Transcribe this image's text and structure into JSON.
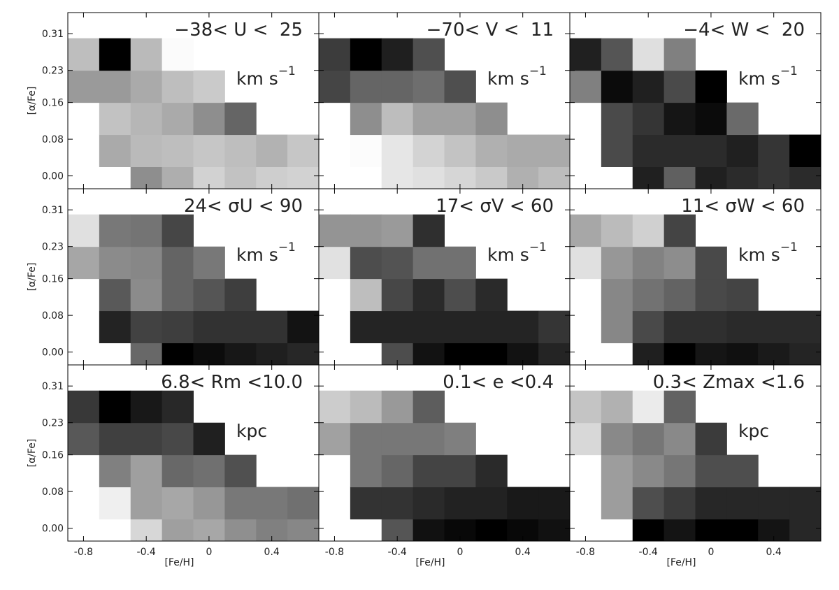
{
  "chart_data": [
    {
      "type": "heatmap",
      "title": "−38< U <  25",
      "annotation": {
        "text": "km s",
        "superscript": "−1"
      },
      "zlim": [
        -38,
        25
      ],
      "ylabel": "[α/Fe]",
      "x_bins": [
        -0.9,
        -0.7,
        -0.5,
        -0.3,
        -0.1,
        0.1,
        0.3,
        0.5,
        0.7
      ],
      "y_bins": [
        -0.05,
        0.02,
        0.09,
        0.16,
        0.23,
        0.3
      ],
      "xlim": [
        -0.9,
        0.7
      ],
      "ylim": [
        -0.028,
        0.356
      ],
      "xticks": [
        -0.8,
        -0.4,
        0,
        0.4
      ],
      "yticks": [
        {
          "value": 0,
          "label": "0.00"
        },
        {
          "value": 0.08,
          "label": "0.08"
        },
        {
          "value": 0.16,
          "label": "0.16"
        },
        {
          "value": 0.23,
          "label": "0.23"
        },
        {
          "value": 0.31,
          "label": "0.31"
        }
      ],
      "values": [
        [
          null,
          null,
          -3,
          5,
          14,
          10,
          13,
          14
        ],
        [
          null,
          4,
          8,
          9,
          11,
          9,
          6,
          11
        ],
        [
          null,
          10,
          7,
          4,
          -3,
          -13,
          null,
          null
        ],
        [
          0,
          0,
          4,
          9,
          12,
          null,
          null,
          null
        ],
        [
          9,
          -38,
          8,
          24,
          null,
          null,
          null,
          null
        ]
      ]
    },
    {
      "type": "heatmap",
      "title": "−70< V <  11",
      "annotation": {
        "text": "km s",
        "superscript": "−1"
      },
      "zlim": [
        -70,
        11
      ],
      "x_bins": [
        -0.9,
        -0.7,
        -0.5,
        -0.3,
        -0.1,
        0.1,
        0.3,
        0.5,
        0.7
      ],
      "y_bins": [
        -0.05,
        0.02,
        0.09,
        0.16,
        0.23,
        0.3
      ],
      "xlim": [
        -0.9,
        0.7
      ],
      "ylim": [
        -0.028,
        0.356
      ],
      "xticks": [
        -0.8,
        -0.4,
        0,
        0.4
      ],
      "yticks": [
        {
          "value": 0,
          "label": "0.00"
        },
        {
          "value": 0.08,
          "label": "0.08"
        },
        {
          "value": 0.16,
          "label": "0.16"
        },
        {
          "value": 0.23,
          "label": "0.23"
        },
        {
          "value": 0.31,
          "label": "0.31"
        }
      ],
      "values": [
        [
          null,
          null,
          3,
          1,
          -2,
          -6,
          -14,
          -10
        ],
        [
          null,
          10,
          3,
          -3,
          -8,
          -14,
          -16,
          -16
        ],
        [
          null,
          -25,
          -10,
          -19,
          -19,
          -25,
          null,
          null
        ],
        [
          -48,
          -38,
          -38,
          -35,
          -45,
          null,
          null,
          null
        ],
        [
          -51,
          -70,
          -60,
          -45,
          null,
          null,
          null,
          null
        ]
      ]
    },
    {
      "type": "heatmap",
      "title": "−4< W <  20",
      "annotation": {
        "text": "km s",
        "superscript": "−1"
      },
      "zlim": [
        -4,
        20
      ],
      "x_bins": [
        -0.9,
        -0.7,
        -0.5,
        -0.3,
        -0.1,
        0.1,
        0.3,
        0.5,
        0.7
      ],
      "y_bins": [
        -0.05,
        0.02,
        0.09,
        0.16,
        0.23,
        0.3
      ],
      "xlim": [
        -0.9,
        0.7
      ],
      "ylim": [
        -0.028,
        0.356
      ],
      "xticks": [
        -0.8,
        -0.4,
        0,
        0.4
      ],
      "yticks": [
        {
          "value": 0,
          "label": "0.00"
        },
        {
          "value": 0.08,
          "label": "0.08"
        },
        {
          "value": 0.16,
          "label": "0.16"
        },
        {
          "value": 0.23,
          "label": "0.23"
        },
        {
          "value": 0.31,
          "label": "0.31"
        }
      ],
      "values": [
        [
          null,
          null,
          -1,
          5,
          -1,
          0,
          1,
          0
        ],
        [
          null,
          3,
          0,
          0,
          0,
          -1,
          1,
          -4
        ],
        [
          null,
          3,
          1,
          -2,
          -3,
          6,
          null,
          null
        ],
        [
          8,
          -3,
          -1,
          3,
          -4,
          null,
          null,
          null
        ],
        [
          -1,
          4,
          17,
          8,
          null,
          null,
          null,
          null
        ]
      ]
    },
    {
      "type": "heatmap",
      "title": "24< σU < 90",
      "annotation": {
        "text": "km s",
        "superscript": "−1"
      },
      "zlim": [
        24,
        90
      ],
      "ylabel": "[α/Fe]",
      "x_bins": [
        -0.9,
        -0.7,
        -0.5,
        -0.3,
        -0.1,
        0.1,
        0.3,
        0.5,
        0.7
      ],
      "y_bins": [
        -0.05,
        0.02,
        0.09,
        0.16,
        0.23,
        0.3
      ],
      "xlim": [
        -0.9,
        0.7
      ],
      "ylim": [
        -0.028,
        0.356
      ],
      "xticks": [
        -0.8,
        -0.4,
        0,
        0.4
      ],
      "yticks": [
        {
          "value": 0,
          "label": "0.00"
        },
        {
          "value": 0.08,
          "label": "0.08"
        },
        {
          "value": 0.16,
          "label": "0.16"
        },
        {
          "value": 0.23,
          "label": "0.23"
        },
        {
          "value": 0.31,
          "label": "0.31"
        }
      ],
      "values": [
        [
          null,
          null,
          51,
          24,
          27,
          30,
          32,
          34
        ],
        [
          null,
          33,
          41,
          40,
          37,
          37,
          37,
          29
        ],
        [
          null,
          47,
          60,
          50,
          46,
          40,
          null,
          null
        ],
        [
          67,
          60,
          59,
          50,
          55,
          null,
          null,
          null
        ],
        [
          82,
          55,
          54,
          42,
          null,
          null,
          null,
          null
        ]
      ]
    },
    {
      "type": "heatmap",
      "title": "17< σV < 60",
      "annotation": {
        "text": "km s",
        "superscript": "−1"
      },
      "zlim": [
        17,
        60
      ],
      "x_bins": [
        -0.9,
        -0.7,
        -0.5,
        -0.3,
        -0.1,
        0.1,
        0.3,
        0.5,
        0.7
      ],
      "y_bins": [
        -0.05,
        0.02,
        0.09,
        0.16,
        0.23,
        0.3
      ],
      "xlim": [
        -0.9,
        0.7
      ],
      "ylim": [
        -0.028,
        0.356
      ],
      "xticks": [
        -0.8,
        -0.4,
        0,
        0.4
      ],
      "yticks": [
        {
          "value": 0,
          "label": "0.00"
        },
        {
          "value": 0.08,
          "label": "0.08"
        },
        {
          "value": 0.16,
          "label": "0.16"
        },
        {
          "value": 0.23,
          "label": "0.23"
        },
        {
          "value": 0.31,
          "label": "0.31"
        }
      ],
      "values": [
        [
          null,
          null,
          30,
          20,
          17,
          17,
          20,
          23
        ],
        [
          null,
          23,
          23,
          23,
          23,
          23,
          23,
          26
        ],
        [
          null,
          49,
          29,
          24,
          30,
          24,
          null,
          null
        ],
        [
          55,
          30,
          31,
          36,
          36,
          null,
          null,
          null
        ],
        [
          42,
          42,
          43,
          25,
          null,
          null,
          null,
          null
        ]
      ]
    },
    {
      "type": "heatmap",
      "title": "11< σW < 60",
      "annotation": {
        "text": "km s",
        "superscript": "−1"
      },
      "zlim": [
        11,
        60
      ],
      "x_bins": [
        -0.9,
        -0.7,
        -0.5,
        -0.3,
        -0.1,
        0.1,
        0.3,
        0.5,
        0.7
      ],
      "y_bins": [
        -0.05,
        0.02,
        0.09,
        0.16,
        0.23,
        0.3
      ],
      "xlim": [
        -0.9,
        0.7
      ],
      "ylim": [
        -0.028,
        0.356
      ],
      "xticks": [
        -0.8,
        -0.4,
        0,
        0.4
      ],
      "yticks": [
        {
          "value": 0,
          "label": "0.00"
        },
        {
          "value": 0.08,
          "label": "0.08"
        },
        {
          "value": 0.16,
          "label": "0.16"
        },
        {
          "value": 0.23,
          "label": "0.23"
        },
        {
          "value": 0.31,
          "label": "0.31"
        }
      ],
      "values": [
        [
          null,
          null,
          17,
          11,
          15,
          14,
          16,
          18
        ],
        [
          null,
          37,
          25,
          20,
          20,
          19,
          19,
          19
        ],
        [
          null,
          37,
          33,
          30,
          25,
          24,
          null,
          null
        ],
        [
          54,
          40,
          36,
          38,
          25,
          null,
          null,
          null
        ],
        [
          43,
          47,
          51,
          24,
          null,
          null,
          null,
          null
        ]
      ]
    },
    {
      "type": "heatmap",
      "title": "6.8< Rm <10.0",
      "annotation": {
        "text": "kpc"
      },
      "zlim": [
        6.8,
        10.0
      ],
      "ylabel": "[α/Fe]",
      "xlabel": "[Fe/H]",
      "x_bins": [
        -0.9,
        -0.7,
        -0.5,
        -0.3,
        -0.1,
        0.1,
        0.3,
        0.5,
        0.7
      ],
      "y_bins": [
        -0.05,
        0.02,
        0.09,
        0.16,
        0.23,
        0.3
      ],
      "xlim": [
        -0.9,
        0.7
      ],
      "ylim": [
        -0.028,
        0.356
      ],
      "xticks": [
        -0.8,
        -0.4,
        0,
        0.4
      ],
      "yticks": [
        {
          "value": 0,
          "label": "0.00"
        },
        {
          "value": 0.08,
          "label": "0.08"
        },
        {
          "value": 0.16,
          "label": "0.16"
        },
        {
          "value": 0.23,
          "label": "0.23"
        },
        {
          "value": 0.31,
          "label": "0.31"
        }
      ],
      "values": [
        [
          null,
          null,
          9.5,
          8.8,
          8.9,
          8.6,
          8.4,
          8.5
        ],
        [
          null,
          9.8,
          8.8,
          8.9,
          8.7,
          8.3,
          8.3,
          8.2
        ],
        [
          null,
          8.4,
          8.8,
          8.1,
          8.2,
          7.8,
          null,
          null
        ],
        [
          7.9,
          7.6,
          7.6,
          7.7,
          7.2,
          null,
          null,
          null
        ],
        [
          7.5,
          6.8,
          7.1,
          7.3,
          null,
          null,
          null,
          null
        ]
      ]
    },
    {
      "type": "heatmap",
      "title": "0.1< e <0.4",
      "zlim": [
        0.1,
        0.4
      ],
      "xlabel": "[Fe/H]",
      "x_bins": [
        -0.9,
        -0.7,
        -0.5,
        -0.3,
        -0.1,
        0.1,
        0.3,
        0.5,
        0.7
      ],
      "y_bins": [
        -0.05,
        0.02,
        0.09,
        0.16,
        0.23,
        0.3
      ],
      "xlim": [
        -0.9,
        0.7
      ],
      "ylim": [
        -0.028,
        0.356
      ],
      "xticks": [
        -0.8,
        -0.4,
        0,
        0.4
      ],
      "yticks": [
        {
          "value": 0,
          "label": "0.00"
        },
        {
          "value": 0.08,
          "label": "0.08"
        },
        {
          "value": 0.16,
          "label": "0.16"
        },
        {
          "value": 0.23,
          "label": "0.23"
        },
        {
          "value": 0.31,
          "label": "0.31"
        }
      ],
      "values": [
        [
          null,
          null,
          0.2,
          0.12,
          0.11,
          0.1,
          0.11,
          0.12
        ],
        [
          null,
          0.16,
          0.16,
          0.15,
          0.14,
          0.14,
          0.13,
          0.13
        ],
        [
          null,
          0.24,
          0.22,
          0.18,
          0.18,
          0.15,
          null,
          null
        ],
        [
          0.29,
          0.24,
          0.24,
          0.24,
          0.25,
          null,
          null,
          null
        ],
        [
          0.34,
          0.32,
          0.28,
          0.21,
          null,
          null,
          null,
          null
        ]
      ]
    },
    {
      "type": "heatmap",
      "title": "0.3< Zmax <1.6",
      "annotation": {
        "text": "kpc"
      },
      "zlim": [
        0.3,
        1.6
      ],
      "xlabel": "[Fe/H]",
      "x_bins": [
        -0.9,
        -0.7,
        -0.5,
        -0.3,
        -0.1,
        0.1,
        0.3,
        0.5,
        0.7
      ],
      "y_bins": [
        -0.05,
        0.02,
        0.09,
        0.16,
        0.23,
        0.3
      ],
      "xlim": [
        -0.9,
        0.7
      ],
      "ylim": [
        -0.028,
        0.356
      ],
      "xticks": [
        -0.8,
        -0.4,
        0,
        0.4
      ],
      "yticks": [
        {
          "value": 0,
          "label": "0.00"
        },
        {
          "value": 0.08,
          "label": "0.08"
        },
        {
          "value": 0.16,
          "label": "0.16"
        },
        {
          "value": 0.23,
          "label": "0.23"
        },
        {
          "value": 0.31,
          "label": "0.31"
        }
      ],
      "values": [
        [
          null,
          null,
          0.3,
          0.4,
          0.3,
          0.3,
          0.4,
          0.5
        ],
        [
          null,
          1.1,
          0.7,
          0.6,
          0.5,
          0.5,
          0.5,
          0.5
        ],
        [
          null,
          1.1,
          1.0,
          0.9,
          0.7,
          0.7,
          null,
          null
        ],
        [
          1.4,
          1.0,
          0.9,
          1.0,
          0.6,
          null,
          null,
          null
        ],
        [
          1.3,
          1.2,
          1.5,
          0.8,
          null,
          null,
          null,
          null
        ]
      ]
    }
  ]
}
